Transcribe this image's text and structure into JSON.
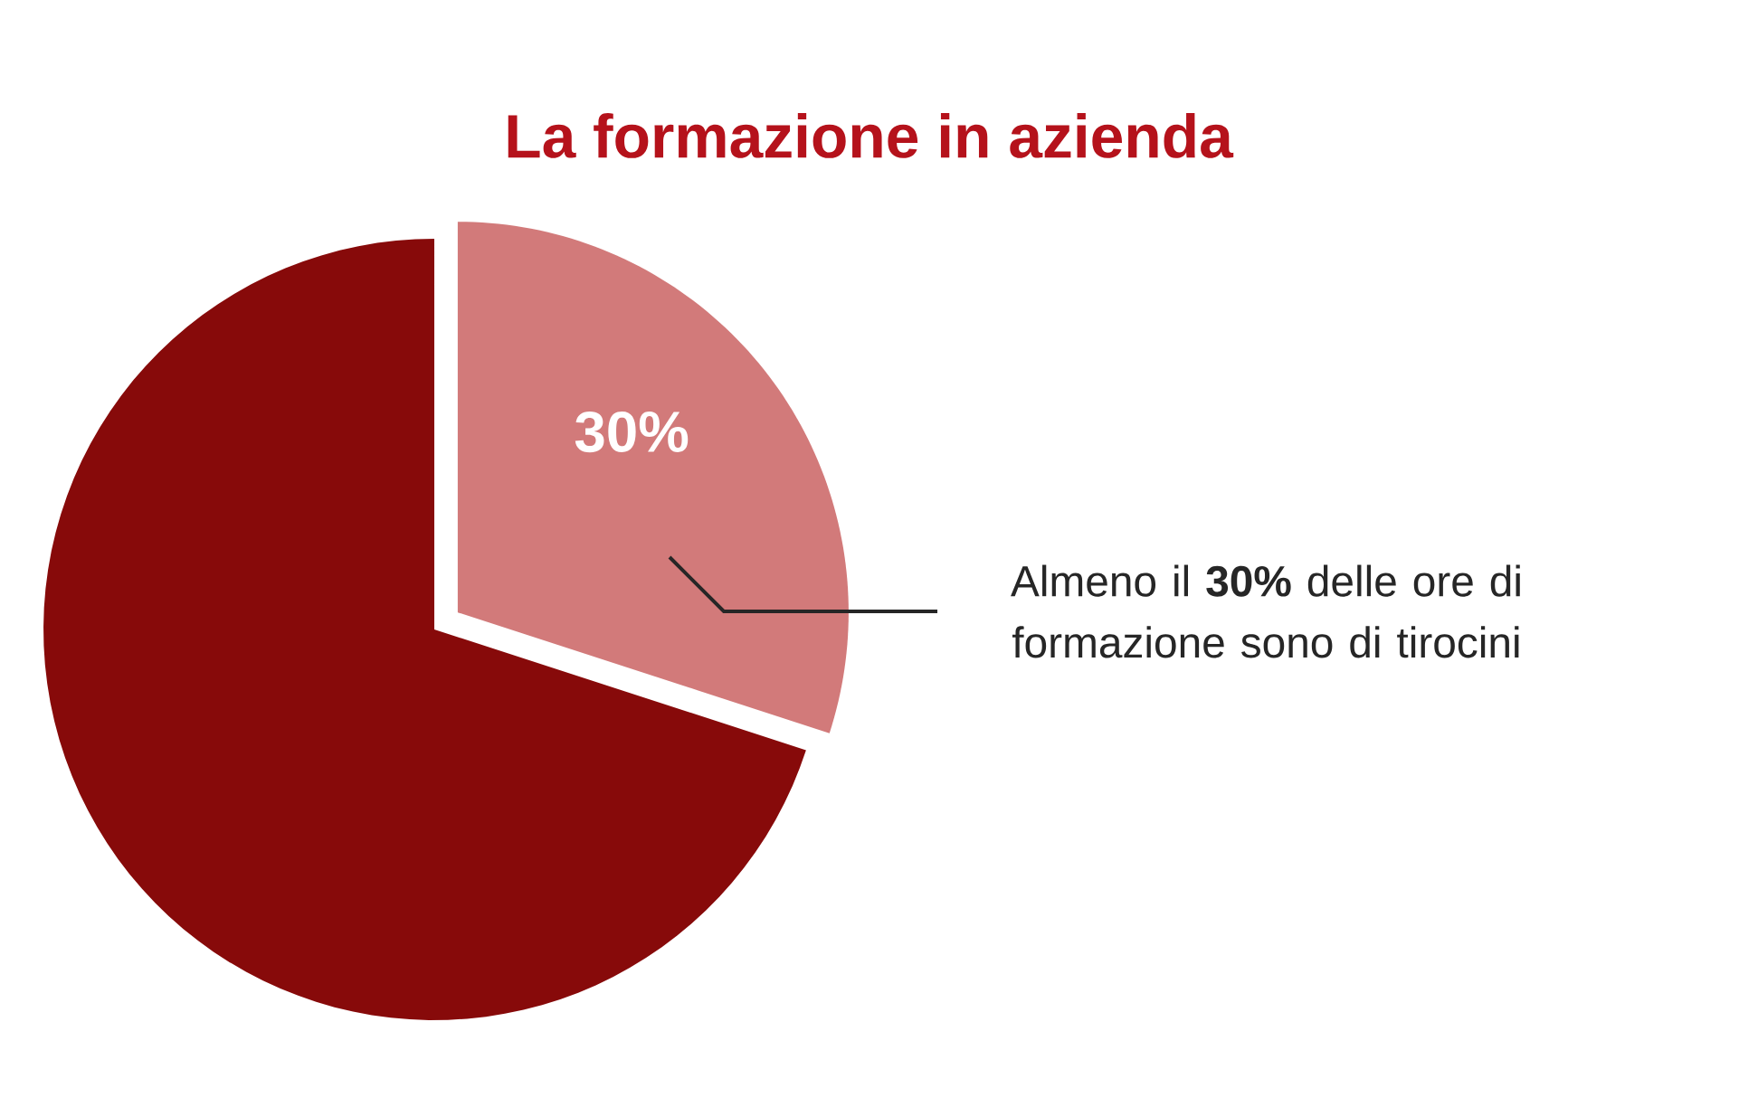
{
  "chart_data": {
    "type": "pie",
    "title": "La formazione in azienda",
    "categories": [
      null,
      null
    ],
    "values": [
      30,
      70
    ],
    "colors": [
      "#d27a7a",
      "#870a0a"
    ],
    "value_labels": [
      "30%",
      null
    ],
    "annotations": [
      "Almeno il **30%** delle ore di formazione sono di tirocini"
    ]
  }
}
